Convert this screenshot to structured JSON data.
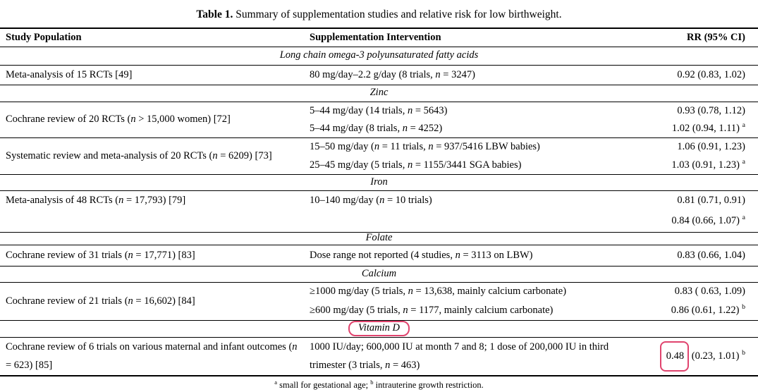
{
  "title": {
    "label": "Table 1.",
    "text": " Summary of supplementation studies and relative risk for low birthweight."
  },
  "columns": {
    "study": "Study Population",
    "intervention": "Supplementation Intervention",
    "rr": "RR (95% CI)"
  },
  "sections": [
    {
      "name": "Long chain omega-3 polyunsaturated fatty acids",
      "rows": [
        {
          "study": "Meta-analysis of 15 RCTs [49]",
          "intervention": "80 mg/day–2.2 g/day (8 trials, *n* = 3247)",
          "rr": "0.92 (0.83, 1.02)"
        }
      ]
    },
    {
      "name": "Zinc",
      "groups": [
        {
          "study": "Cochrane review of 20 RCTs (*n* > 15,000 women) [72]",
          "rows": [
            {
              "intervention": "5–44 mg/day (14 trials, *n* = 5643)",
              "rr": "0.93 (0.78, 1.12)"
            },
            {
              "intervention": "5–44 mg/day (8 trials, *n* = 4252)",
              "rr": "1.02 (0.94, 1.11) ^a"
            }
          ]
        },
        {
          "study": "Systematic review and meta-analysis of 20 RCTs (*n* = 6209) [73]",
          "rows": [
            {
              "intervention": "15–50 mg/day (*n* = 11 trials, *n* = 937/5416 LBW babies)",
              "rr": "1.06 (0.91, 1.23)"
            },
            {
              "intervention": "25–45 mg/day (5 trials, *n* = 1155/3441 SGA babies)",
              "rr": "1.03 (0.91, 1.23) ^a"
            }
          ]
        }
      ]
    },
    {
      "name": "Iron",
      "groups": [
        {
          "study": "Meta-analysis of 48 RCTs (*n* = 17,793) [79]",
          "rows": [
            {
              "intervention": "10–140 mg/day (*n* = 10 trials)",
              "rr": "0.81 (0.71, 0.91)"
            },
            {
              "intervention": "",
              "rr": "0.84 (0.66, 1.07) ^a"
            }
          ]
        }
      ]
    },
    {
      "name": "Folate",
      "rows": [
        {
          "study": "Cochrane review of 31 trials (*n* = 17,771) [83]",
          "intervention": "Dose range not reported (4 studies, *n* = 3113 on LBW)",
          "rr": "0.83 (0.66, 1.04)"
        }
      ]
    },
    {
      "name": "Calcium",
      "groups": [
        {
          "study": "Cochrane review of 21 trials (*n* = 16,602) [84]",
          "rows": [
            {
              "intervention": "≥1000 mg/day (5 trials, *n* = 13,638, mainly calcium carbonate)",
              "rr": "0.83 ( 0.63, 1.09)"
            },
            {
              "intervention": "≥600 mg/day (5 trials, *n* = 1177, mainly calcium carbonate)",
              "rr": "0.86 (0.61, 1.22) ^b"
            }
          ]
        }
      ]
    },
    {
      "name": "Vitamin D",
      "highlighted": true,
      "rows": [
        {
          "study": "Cochrane review of 6 trials on various maternal and infant outcomes (*n* = 623) [85]",
          "intervention": "1000 IU/day; 600,000 IU at month 7 and 8; 1 dose of 200,000 IU in third trimester (3 trials, *n* = 463)",
          "rr_boxed": "0.48",
          "rr_rest": " (0.23, 1.01) ^b"
        }
      ]
    }
  ],
  "footnote": "^a small for gestational age; ^b intrauterine growth restriction.",
  "annotations": {
    "highlight_color": "#e0446e",
    "boxed_section": "Vitamin D",
    "boxed_value": "0.48"
  }
}
